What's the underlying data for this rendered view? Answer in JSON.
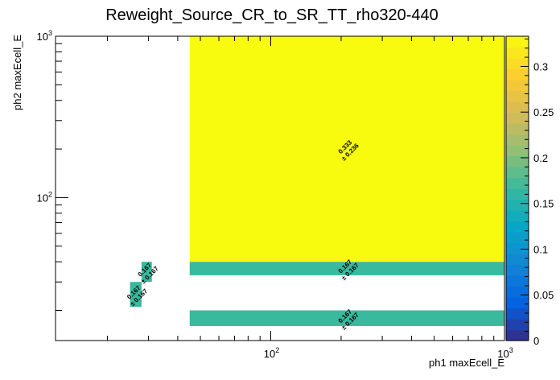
{
  "chart_data": {
    "type": "heatmap",
    "title": "Reweight_Source_CR_to_SR_TT_rho320-440",
    "xlabel": "ph1 maxEcell_E",
    "ylabel": "ph2 maxEcell_E",
    "x_scale": "log",
    "y_scale": "log",
    "xlim": [
      12,
      1000
    ],
    "ylim": [
      13,
      1000
    ],
    "x_ticks": [
      {
        "value": 100,
        "label": "10",
        "exp": "2"
      },
      {
        "value": 1000,
        "label": "10",
        "exp": "3"
      }
    ],
    "y_ticks": [
      {
        "value": 100,
        "label": "10",
        "exp": "2"
      },
      {
        "value": 1000,
        "label": "10",
        "exp": "3"
      }
    ],
    "z_range": [
      0,
      0.333
    ],
    "z_ticks": [
      "0",
      "0.05",
      "0.1",
      "0.15",
      "0.2",
      "0.25",
      "0.3"
    ],
    "cells": [
      {
        "x": [
          25,
          28
        ],
        "y": [
          21,
          30
        ],
        "value": 0.167,
        "value_text": "0.167",
        "error_text": "± 0.167"
      },
      {
        "x": [
          28,
          31
        ],
        "y": [
          30,
          40
        ],
        "value": 0.167,
        "value_text": "0.167",
        "error_text": "± 0.167"
      },
      {
        "x": [
          45,
          1000
        ],
        "y": [
          16,
          20
        ],
        "value": 0.167,
        "value_text": "0.167",
        "error_text": "± 0.167"
      },
      {
        "x": [
          45,
          1000
        ],
        "y": [
          33,
          40
        ],
        "value": 0.167,
        "value_text": "0.167",
        "error_text": "± 0.167"
      },
      {
        "x": [
          45,
          1000
        ],
        "y": [
          40,
          1000
        ],
        "value": 0.333,
        "value_text": "0.333",
        "error_text": "± 0.236"
      }
    ],
    "grid": false,
    "legend": "colorbar-right"
  },
  "palette": [
    "#352a87",
    "#0363e1",
    "#1485d4",
    "#06a7c6",
    "#38b99e",
    "#92bf73",
    "#d9ba56",
    "#fcce2e",
    "#f9fb0e"
  ]
}
